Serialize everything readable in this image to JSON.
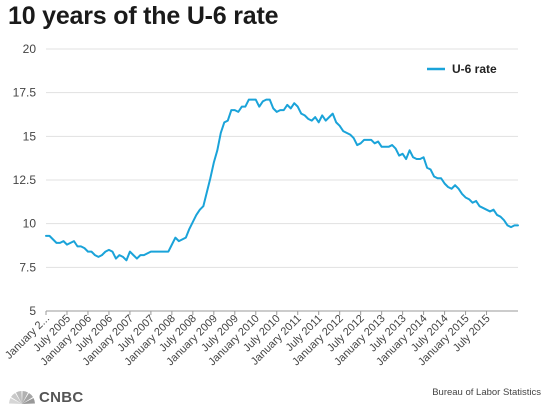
{
  "chart_data": {
    "type": "line",
    "title": "10 years of the U-6 rate",
    "xlabel": "",
    "ylabel": "",
    "ylim": [
      5,
      20
    ],
    "yticks": [
      "5",
      "7.5",
      "10",
      "12.5",
      "15",
      "17.5",
      "20"
    ],
    "xtick_labels": [
      "January 2...",
      "July 2005",
      "January 2006",
      "July 2006",
      "January 2007",
      "July 2007",
      "January 2008",
      "July 2008",
      "January 2009",
      "July 2009",
      "January 2010",
      "July 2010",
      "January 2011",
      "July 2011",
      "January 2012",
      "July 2012",
      "January 2013",
      "July 2013",
      "January 2014",
      "July 2014",
      "January 2015",
      "July 2015"
    ],
    "grid": "horizontal",
    "legend_position": "top-right",
    "series": [
      {
        "name": "U-6 rate",
        "color": "#1aa3d9",
        "values": [
          9.3,
          9.3,
          9.1,
          8.9,
          8.9,
          9.0,
          8.8,
          8.9,
          9.0,
          8.7,
          8.7,
          8.6,
          8.4,
          8.4,
          8.2,
          8.1,
          8.2,
          8.4,
          8.5,
          8.4,
          8.0,
          8.2,
          8.1,
          7.9,
          8.4,
          8.2,
          8.0,
          8.2,
          8.2,
          8.3,
          8.4,
          8.4,
          8.4,
          8.4,
          8.4,
          8.4,
          8.8,
          9.2,
          9.0,
          9.1,
          9.2,
          9.7,
          10.1,
          10.5,
          10.8,
          11.0,
          11.8,
          12.6,
          13.5,
          14.2,
          15.2,
          15.8,
          15.9,
          16.5,
          16.5,
          16.4,
          16.7,
          16.7,
          17.1,
          17.1,
          17.1,
          16.7,
          17.0,
          17.1,
          17.1,
          16.6,
          16.4,
          16.5,
          16.5,
          16.8,
          16.6,
          16.9,
          16.7,
          16.3,
          16.2,
          16.0,
          15.9,
          16.1,
          15.8,
          16.2,
          15.9,
          16.1,
          16.3,
          15.8,
          15.6,
          15.3,
          15.2,
          15.1,
          14.9,
          14.5,
          14.6,
          14.8,
          14.8,
          14.8,
          14.6,
          14.7,
          14.4,
          14.4,
          14.4,
          14.5,
          14.3,
          13.9,
          14.0,
          13.7,
          14.2,
          13.8,
          13.7,
          13.7,
          13.8,
          13.2,
          13.1,
          12.7,
          12.6,
          12.6,
          12.3,
          12.1,
          12.0,
          12.2,
          12.0,
          11.7,
          11.5,
          11.4,
          11.2,
          11.3,
          11.0,
          10.9,
          10.8,
          10.7,
          10.8,
          10.5,
          10.4,
          10.2,
          9.9,
          9.8,
          9.9,
          9.9
        ]
      }
    ]
  },
  "source": "Bureau of Labor Statistics",
  "brand": {
    "name": "CNBC",
    "logo_icon": "peacock-logo-icon",
    "logo_colors": [
      "#d6d6d6",
      "#c9c9c9",
      "#bdbdbd",
      "#b1b1b1",
      "#a5a5a5",
      "#999999"
    ]
  }
}
